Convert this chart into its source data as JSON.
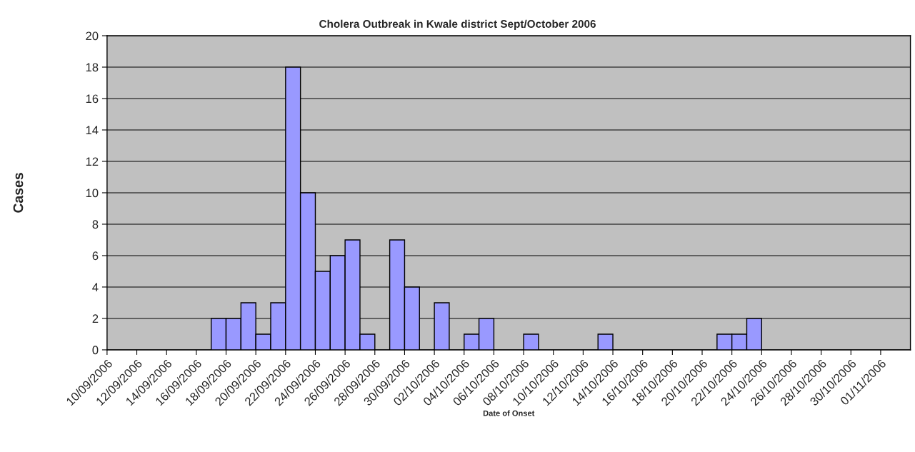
{
  "chart_data": {
    "type": "bar",
    "title": "Cholera Outbreak in Kwale district Sept/October 2006",
    "xlabel": "Date of Onset",
    "ylabel": "Cases",
    "x": [
      "2006-09-17T12:00",
      "2006-09-18T12:00",
      "2006-09-19T12:00",
      "2006-09-20T12:00",
      "2006-09-21T12:00",
      "2006-09-22T12:00",
      "2006-09-23T12:00",
      "2006-09-24T12:00",
      "2006-09-25T12:00",
      "2006-09-26T12:00",
      "2006-09-27T12:00",
      "2006-09-29T12:00",
      "2006-09-30T12:00",
      "2006-10-02T12:00",
      "2006-10-04T12:00",
      "2006-10-05T12:00",
      "2006-10-08T12:00",
      "2006-10-13T12:00",
      "2006-10-21T12:00",
      "2006-10-22T12:00",
      "2006-10-23T12:00"
    ],
    "values": [
      2,
      2,
      3,
      1,
      3,
      18,
      10,
      5,
      6,
      7,
      1,
      7,
      4,
      3,
      1,
      2,
      1,
      1,
      1,
      1,
      2
    ],
    "color": "#9999ff",
    "xlim": [
      "2006-09-10",
      "2006-11-03"
    ],
    "xticks": [
      {
        "value": "2006-09-10",
        "label": "10/09/2006"
      },
      {
        "value": "2006-09-12",
        "label": "12/09/2006"
      },
      {
        "value": "2006-09-14",
        "label": "14/09/2006"
      },
      {
        "value": "2006-09-16",
        "label": "16/09/2006"
      },
      {
        "value": "2006-09-18",
        "label": "18/09/2006"
      },
      {
        "value": "2006-09-20",
        "label": "20/09/2006"
      },
      {
        "value": "2006-09-22",
        "label": "22/09/2006"
      },
      {
        "value": "2006-09-24",
        "label": "24/09/2006"
      },
      {
        "value": "2006-09-26",
        "label": "26/09/2006"
      },
      {
        "value": "2006-09-28",
        "label": "28/09/2006"
      },
      {
        "value": "2006-09-30",
        "label": "30/09/2006"
      },
      {
        "value": "2006-10-02",
        "label": "02/10/2006"
      },
      {
        "value": "2006-10-04",
        "label": "04/10/2006"
      },
      {
        "value": "2006-10-06",
        "label": "06/10/2006"
      },
      {
        "value": "2006-10-08",
        "label": "08/10/2006"
      },
      {
        "value": "2006-10-10",
        "label": "10/10/2006"
      },
      {
        "value": "2006-10-12",
        "label": "12/10/2006"
      },
      {
        "value": "2006-10-14",
        "label": "14/10/2006"
      },
      {
        "value": "2006-10-16",
        "label": "16/10/2006"
      },
      {
        "value": "2006-10-18",
        "label": "18/10/2006"
      },
      {
        "value": "2006-10-20",
        "label": "20/10/2006"
      },
      {
        "value": "2006-10-22",
        "label": "22/10/2006"
      },
      {
        "value": "2006-10-24",
        "label": "24/10/2006"
      },
      {
        "value": "2006-10-26",
        "label": "26/10/2006"
      },
      {
        "value": "2006-10-28",
        "label": "28/10/2006"
      },
      {
        "value": "2006-10-30",
        "label": "30/10/2006"
      },
      {
        "value": "2006-11-01",
        "label": "01/11/2006"
      }
    ],
    "ylim": [
      0,
      20
    ],
    "yticks": [
      0,
      2,
      4,
      6,
      8,
      10,
      12,
      14,
      16,
      18,
      20
    ],
    "grid": "y"
  }
}
